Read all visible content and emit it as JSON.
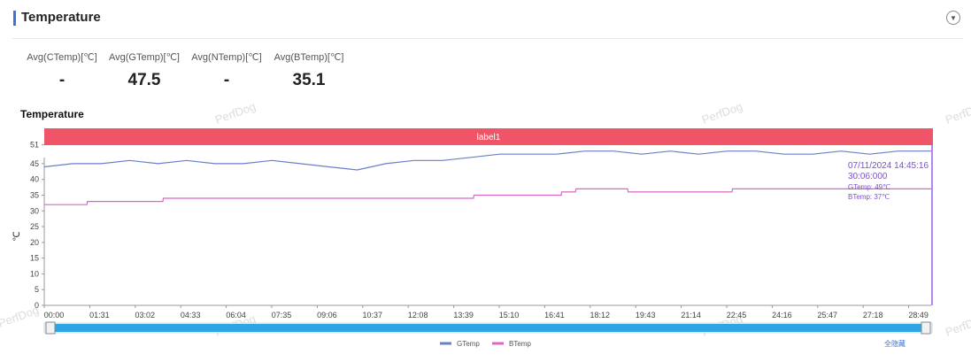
{
  "header": {
    "title": "Temperature",
    "collapse_icon": "chevron-down-icon"
  },
  "stats": [
    {
      "label": "Avg(CTemp)[℃]",
      "value": "-"
    },
    {
      "label": "Avg(GTemp)[℃]",
      "value": "47.5"
    },
    {
      "label": "Avg(NTemp)[℃]",
      "value": "-"
    },
    {
      "label": "Avg(BTemp)[℃]",
      "value": "35.1"
    }
  ],
  "chart_title": "Temperature",
  "watermark": "PerfDog",
  "chart_data": {
    "type": "line",
    "band_label": "label1",
    "ylabel": "℃",
    "ylim": [
      0,
      52
    ],
    "yticks": [
      0,
      5,
      10,
      15,
      20,
      25,
      30,
      35,
      40,
      45,
      51
    ],
    "xlim": [
      0,
      1870
    ],
    "xticks": [
      "00:00",
      "01:31",
      "03:02",
      "04:33",
      "06:04",
      "07:35",
      "09:06",
      "10:37",
      "12:08",
      "13:39",
      "15:10",
      "16:41",
      "18:12",
      "19:43",
      "21:14",
      "22:45",
      "24:16",
      "25:47",
      "27:18",
      "28:49"
    ],
    "series": [
      {
        "name": "GTemp",
        "color": "#6a7fc8",
        "x": [
          0,
          60,
          120,
          180,
          240,
          300,
          360,
          420,
          480,
          540,
          600,
          660,
          720,
          780,
          840,
          900,
          960,
          1020,
          1080,
          1140,
          1200,
          1260,
          1320,
          1380,
          1440,
          1500,
          1560,
          1620,
          1680,
          1740,
          1800,
          1870
        ],
        "y": [
          44,
          45,
          45,
          46,
          45,
          46,
          45,
          45,
          46,
          45,
          44,
          43,
          45,
          46,
          46,
          47,
          48,
          48,
          48,
          49,
          49,
          48,
          49,
          48,
          49,
          49,
          48,
          48,
          49,
          48,
          49,
          49
        ]
      },
      {
        "name": "BTemp",
        "color": "#d968c8",
        "x": [
          0,
          90,
          91,
          250,
          251,
          820,
          821,
          905,
          906,
          1090,
          1091,
          1120,
          1121,
          1230,
          1231,
          1450,
          1451,
          1700,
          1701,
          1870
        ],
        "y": [
          32,
          32,
          33,
          33,
          34,
          34,
          34,
          34,
          35,
          35,
          36,
          36,
          37,
          37,
          36,
          36,
          37,
          37,
          37,
          37
        ]
      }
    ],
    "tooltip": {
      "time": "07/11/2024 14:45:16",
      "elapsed": "30:06:000",
      "lines": [
        "GTemp: 49℃",
        "BTemp: 37℃"
      ]
    },
    "legend_position": "bottom-center",
    "hide_all_label": "全隐藏"
  }
}
